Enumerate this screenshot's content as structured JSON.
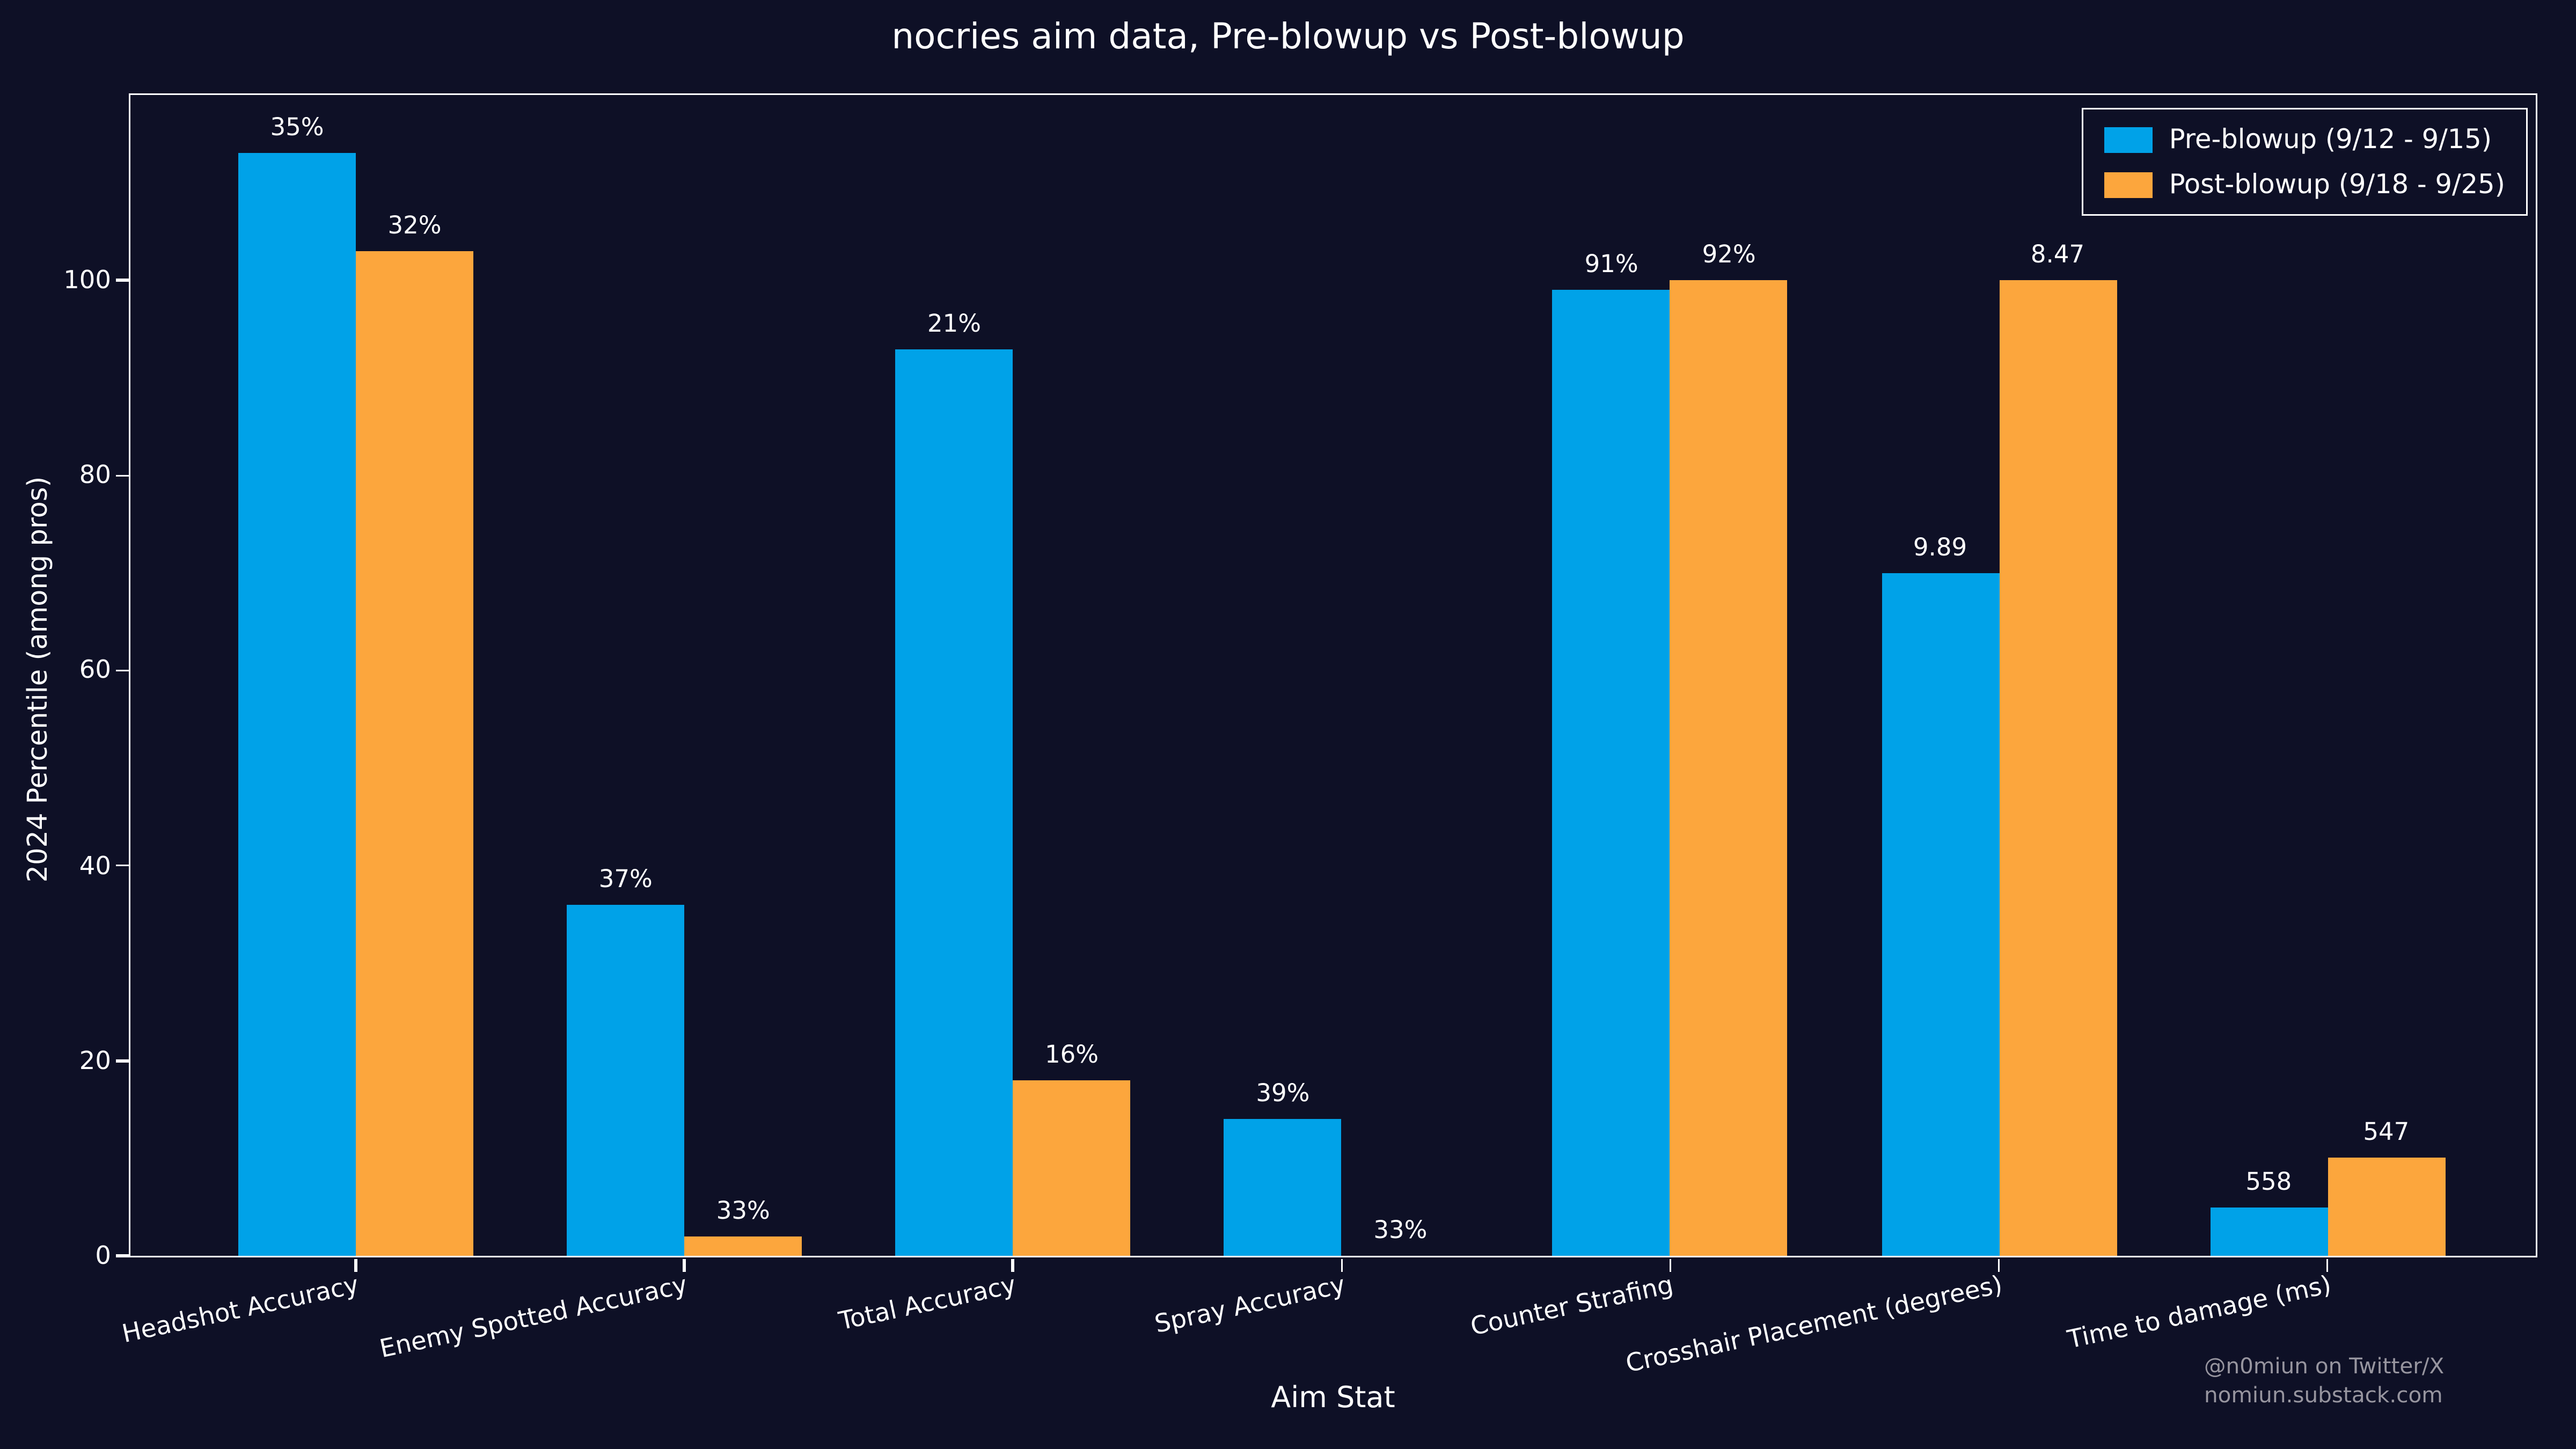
{
  "page": {
    "background": "#0e1026"
  },
  "title": "nocries aim data, Pre-blowup vs Post-blowup",
  "watermark": {
    "line1": "@n0miun on Twitter/X",
    "line2": "nomiun.substack.com"
  },
  "chart_data": {
    "type": "bar",
    "title": "nocries aim data, Pre-blowup vs Post-blowup",
    "xlabel": "Aim Stat",
    "ylabel": "2024 Percentile (among pros)",
    "ylim": [
      0,
      119
    ],
    "yticks": [
      0,
      20,
      40,
      60,
      80,
      100
    ],
    "grid": false,
    "legend_position": "upper-right",
    "background": "#0e1026",
    "categories": [
      "Headshot Accuracy",
      "Enemy Spotted Accuracy",
      "Total Accuracy",
      "Spray Accuracy",
      "Counter Strafing",
      "Crosshair Placement (degrees)",
      "Time to damage (ms)"
    ],
    "series": [
      {
        "name": "Pre-blowup (9/12 - 9/15)",
        "color": "#00a2e8",
        "values": [
          113,
          36,
          93,
          14,
          99,
          70,
          5
        ],
        "bar_labels": [
          "35%",
          "37%",
          "21%",
          "39%",
          "91%",
          "9.89",
          "558"
        ]
      },
      {
        "name": "Post-blowup (9/18 - 9/25)",
        "color": "#fca63d",
        "values": [
          103,
          2,
          18,
          0,
          100,
          100,
          10
        ],
        "bar_labels": [
          "32%",
          "33%",
          "16%",
          "33%",
          "92%",
          "8.47",
          "547"
        ]
      }
    ]
  }
}
